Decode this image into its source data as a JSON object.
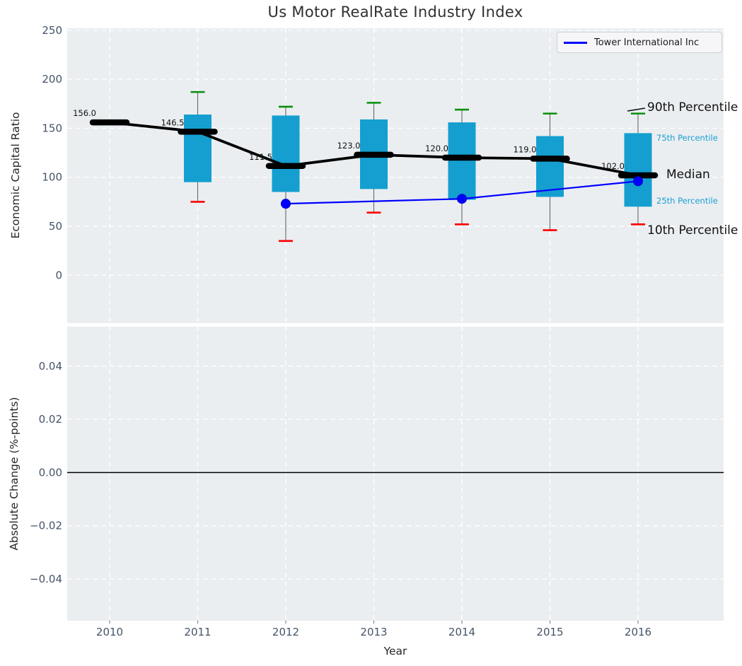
{
  "title": "Us Motor RealRate Industry Index",
  "legend": {
    "label": "Tower International Inc"
  },
  "annotations": {
    "p90": "90th Percentile",
    "p75": "75th Percentile",
    "median": "Median",
    "p25": "25th Percentile",
    "p10": "10th Percentile"
  },
  "colors": {
    "box_fill": "#149fd0",
    "whisker": "#666666",
    "cap_top": "#089008",
    "cap_bottom": "#ff0000",
    "median": "#000000",
    "company_line": "#0000ff",
    "annotation_small": "#1a9fd4",
    "plot_bg": "#eaeef1",
    "grid": "#ffffff",
    "tick_label": "#44546a",
    "zero_line": "#000000"
  },
  "chart_data": [
    {
      "type": "box",
      "title": "Us Motor RealRate Industry Index",
      "xlabel": "Year",
      "ylabel": "Economic Capital Ratio",
      "categories": [
        2010,
        2011,
        2012,
        2013,
        2014,
        2015,
        2016
      ],
      "xtick_labels": [
        "2010",
        "2011",
        "2012",
        "2013",
        "2014",
        "2015",
        "2016"
      ],
      "yticks": [
        0,
        50,
        100,
        150,
        200,
        250
      ],
      "ytick_labels": [
        "0",
        "50",
        "100",
        "150",
        "200",
        "250"
      ],
      "ylim": [
        -49,
        252
      ],
      "grid": true,
      "legend_position": "upper right",
      "boxes": [
        {
          "year": 2010,
          "median": 156.0,
          "label": "156.0"
        },
        {
          "year": 2011,
          "median": 146.5,
          "label": "146.5",
          "p10": 75,
          "p25": 95,
          "p75": 164,
          "p90": 187
        },
        {
          "year": 2012,
          "median": 111.5,
          "label": "111.5",
          "p10": 35,
          "p25": 85,
          "p75": 163,
          "p90": 172
        },
        {
          "year": 2013,
          "median": 123.0,
          "label": "123.0",
          "p10": 64,
          "p25": 88,
          "p75": 159,
          "p90": 176
        },
        {
          "year": 2014,
          "median": 120.0,
          "label": "120.0",
          "p10": 52,
          "p25": 77,
          "p75": 156,
          "p90": 169
        },
        {
          "year": 2015,
          "median": 119.0,
          "label": "119.0",
          "p10": 46,
          "p25": 80,
          "p75": 142,
          "p90": 165
        },
        {
          "year": 2016,
          "median": 102.0,
          "label": "102.0",
          "p10": 52,
          "p25": 70,
          "p75": 145,
          "p90": 165
        }
      ],
      "series": [
        {
          "name": "Tower International Inc",
          "x": [
            2012,
            2014,
            2016
          ],
          "y": [
            73,
            78,
            96
          ],
          "color": "#0000ff",
          "marker": "circle"
        }
      ]
    },
    {
      "type": "line",
      "xlabel": "Year",
      "ylabel": "Absolute Change (%-points)",
      "categories": [
        2010,
        2011,
        2012,
        2013,
        2014,
        2015,
        2016
      ],
      "yticks": [
        -0.04,
        -0.02,
        0.0,
        0.02,
        0.04
      ],
      "ytick_labels": [
        "−0.04",
        "−0.02",
        "0.00",
        "0.02",
        "0.04"
      ],
      "ylim": [
        -0.0556,
        0.0549
      ],
      "grid": true,
      "zero_line": true,
      "series": []
    }
  ]
}
